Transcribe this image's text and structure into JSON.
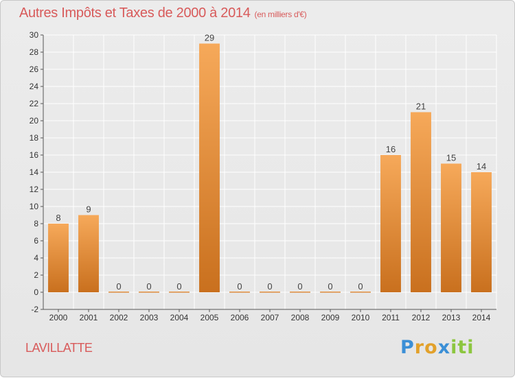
{
  "header": {
    "title": "Autres Impôts et Taxes de 2000 à 2014",
    "unit": "(en milliers d'€)"
  },
  "footer": {
    "commune": "LAVILLATTE",
    "logo_letters": [
      "P",
      "r",
      "o",
      "x",
      "i",
      "t",
      "i"
    ]
  },
  "chart_data": {
    "type": "bar",
    "title": "Autres Impôts et Taxes de 2000 à 2014",
    "subtitle": "(en milliers d'€)",
    "xlabel": "",
    "ylabel": "",
    "categories": [
      "2000",
      "2001",
      "2002",
      "2003",
      "2004",
      "2005",
      "2006",
      "2007",
      "2008",
      "2009",
      "2010",
      "2011",
      "2012",
      "2013",
      "2014"
    ],
    "values": [
      8,
      9,
      0,
      0,
      0,
      29,
      0,
      0,
      0,
      0,
      0,
      16,
      21,
      15,
      14
    ],
    "data_labels": [
      "8",
      "9",
      "0",
      "0",
      "0",
      "29",
      "0",
      "0",
      "0",
      "0",
      "0",
      "16",
      "21",
      "15",
      "14"
    ],
    "ylim": [
      -2,
      30
    ],
    "yticks": [
      -2,
      0,
      2,
      4,
      6,
      8,
      10,
      12,
      14,
      16,
      18,
      20,
      22,
      24,
      26,
      28,
      30
    ],
    "grid": true,
    "legend": "none",
    "colors": {
      "bar_top": "#f6a95a",
      "bar_bottom": "#c9701e",
      "grid": "#ffffff",
      "axis": "#555555",
      "title": "#d85a5a"
    }
  }
}
